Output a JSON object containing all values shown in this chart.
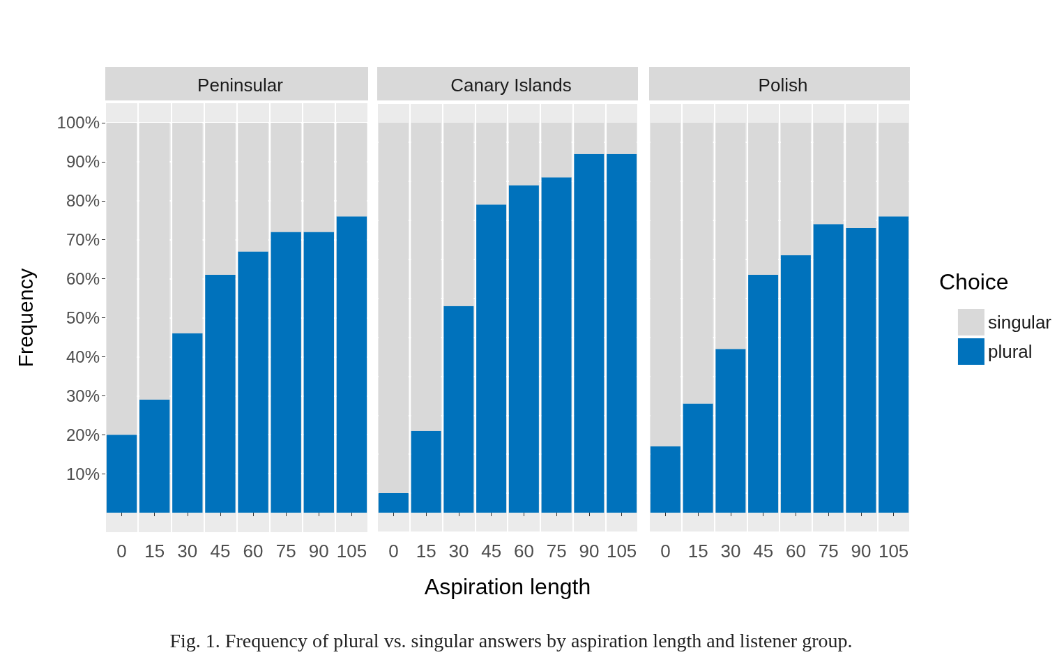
{
  "chart_data": [
    {
      "type": "bar",
      "title": "Peninsular",
      "ylabel": "Frequency",
      "categories": [
        "0",
        "15",
        "30",
        "45",
        "60",
        "75",
        "90",
        "105"
      ],
      "stacked": true,
      "grid": true,
      "legend": false,
      "series": [
        {
          "color": "#0072bc",
          "values": [
            20,
            29,
            46,
            61,
            67,
            72,
            72,
            76
          ]
        },
        {
          "color": "#d9d9d9",
          "values": [
            80,
            71,
            54,
            39,
            33,
            28,
            28,
            24
          ]
        }
      ],
      "ylim": [
        -5,
        105
      ],
      "yticks": [
        {
          "value": 10,
          "label": "10%"
        },
        {
          "value": 20,
          "label": "20%"
        },
        {
          "value": 30,
          "label": "30%"
        },
        {
          "value": 40,
          "label": "40%"
        },
        {
          "value": 50,
          "label": "50%"
        },
        {
          "value": 60,
          "label": "60%"
        },
        {
          "value": 70,
          "label": "70%"
        },
        {
          "value": 80,
          "label": "80%"
        },
        {
          "value": 90,
          "label": "90%"
        },
        {
          "value": 100,
          "label": "100%"
        }
      ]
    },
    {
      "type": "bar",
      "title": "Canary Islands",
      "xlabel": "Aspiration length",
      "categories": [
        "0",
        "15",
        "30",
        "45",
        "60",
        "75",
        "90",
        "105"
      ],
      "stacked": true,
      "grid": true,
      "legend": false,
      "tick_labels": "x",
      "annotations": [
        "Fig. 1. Frequency of plural vs. singular answers by aspiration length and listener group."
      ],
      "series": [
        {
          "color": "#0072bc",
          "values": [
            5,
            21,
            53,
            79,
            84,
            86,
            92,
            92
          ]
        },
        {
          "color": "#d9d9d9",
          "values": [
            95,
            79,
            47,
            21,
            16,
            14,
            8,
            8
          ]
        }
      ],
      "ylim": [
        -5,
        105
      ]
    },
    {
      "type": "bar",
      "title": "Polish",
      "legend_title": "Choice",
      "categories": [
        "0",
        "15",
        "30",
        "45",
        "60",
        "75",
        "90",
        "105"
      ],
      "stacked": true,
      "grid": true,
      "legend": "right",
      "tick_labels": "x",
      "series": [
        {
          "name": "plural",
          "color": "#0072bc",
          "values": [
            17,
            28,
            42,
            61,
            66,
            74,
            73,
            76
          ]
        },
        {
          "name": "singular",
          "color": "#d9d9d9",
          "values": [
            83,
            72,
            58,
            39,
            34,
            26,
            27,
            24
          ]
        }
      ],
      "ylim": [
        -5,
        105
      ]
    }
  ]
}
